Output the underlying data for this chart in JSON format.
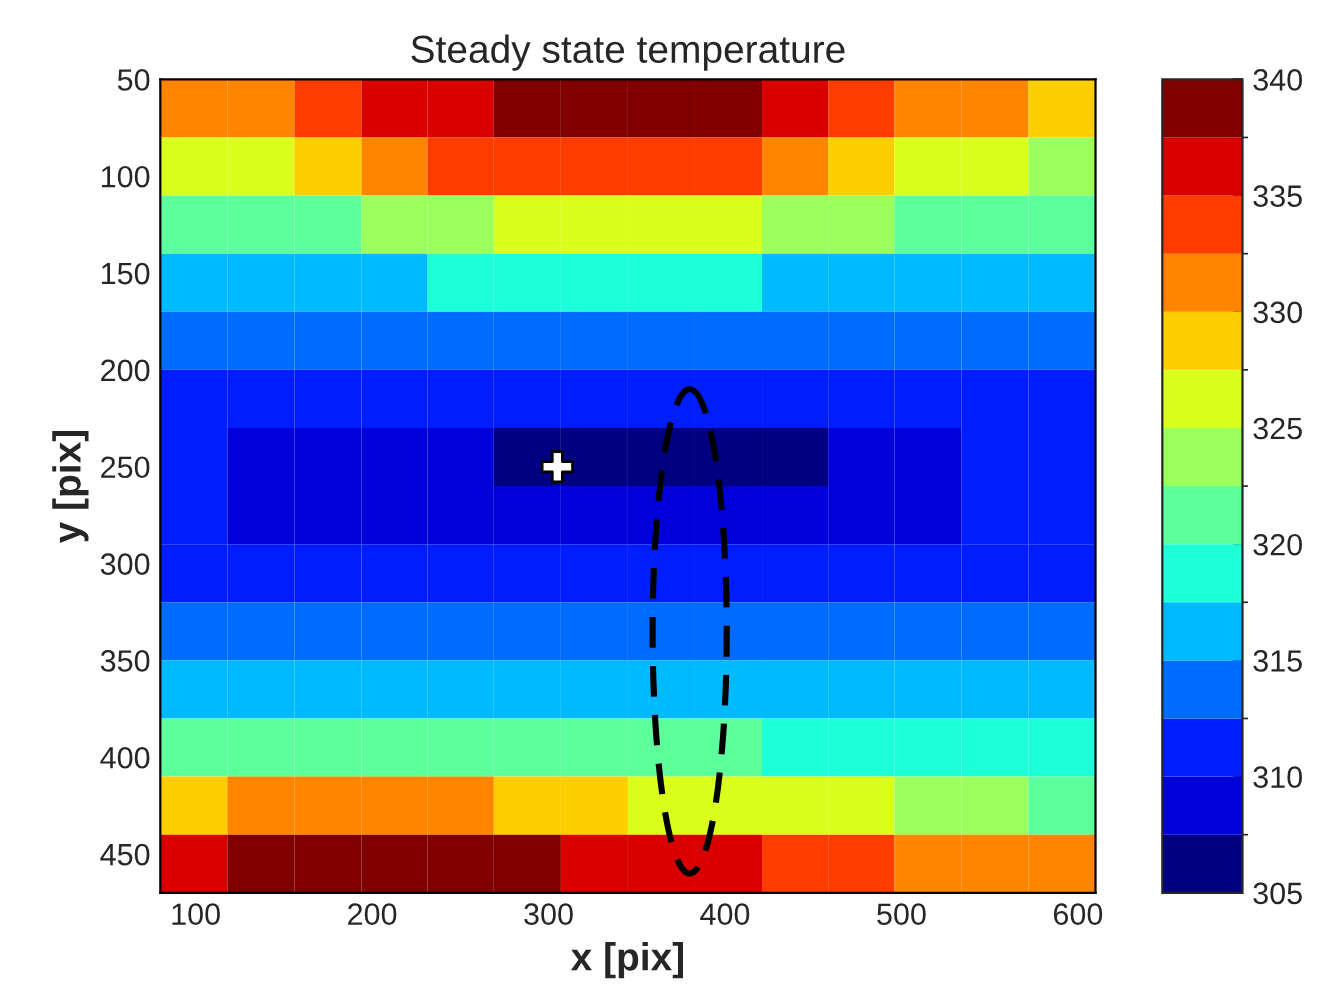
{
  "chart_data": {
    "type": "heatmap",
    "title": "Steady state temperature",
    "xlabel": "x [pix]",
    "ylabel": "y [pix]",
    "x": [
      99,
      137,
      175,
      213,
      250,
      288,
      326,
      364,
      402,
      440,
      477,
      515,
      553,
      591
    ],
    "y": [
      65,
      95,
      125,
      155,
      185,
      215,
      245,
      275,
      305,
      335,
      365,
      395,
      425,
      455
    ],
    "xlim": [
      80,
      610
    ],
    "ylim": [
      470,
      50
    ],
    "xticks": [
      100,
      200,
      300,
      400,
      500,
      600
    ],
    "yticks": [
      50,
      100,
      150,
      200,
      250,
      300,
      350,
      400,
      450
    ],
    "clim": [
      305,
      340
    ],
    "cticks": [
      305,
      310,
      315,
      320,
      325,
      330,
      335,
      340
    ],
    "cells": [
      [
        330,
        332,
        334,
        336,
        337,
        338,
        339,
        339,
        338,
        336,
        334,
        332,
        330,
        328
      ],
      [
        325,
        327,
        329,
        331,
        333,
        334,
        334,
        334,
        333,
        331,
        329,
        327,
        325,
        324
      ],
      [
        320,
        321,
        322,
        323,
        324,
        325,
        326,
        326,
        325,
        324,
        323,
        322,
        321,
        320
      ],
      [
        316,
        316,
        317,
        317,
        318,
        318,
        318,
        318,
        318,
        317,
        317,
        316,
        316,
        316
      ],
      [
        313,
        313,
        313,
        313,
        314,
        314,
        314,
        314,
        314,
        313,
        313,
        313,
        313,
        313
      ],
      [
        311,
        310,
        310,
        310,
        310,
        310,
        310,
        310,
        310,
        310,
        310,
        311,
        311,
        312
      ],
      [
        310,
        309,
        309,
        308,
        308,
        306,
        306,
        306,
        306,
        306,
        308,
        309,
        310,
        311
      ],
      [
        310,
        309,
        309,
        309,
        308,
        308,
        308,
        308,
        308,
        308,
        309,
        309,
        310,
        311
      ],
      [
        311,
        311,
        311,
        311,
        311,
        311,
        311,
        311,
        311,
        311,
        311,
        311,
        311,
        312
      ],
      [
        313,
        313,
        313,
        313,
        313,
        313,
        313,
        313,
        313,
        313,
        313,
        313,
        313,
        313
      ],
      [
        316,
        316,
        316,
        316,
        316,
        316,
        316,
        316,
        316,
        316,
        316,
        316,
        315,
        315
      ],
      [
        321,
        322,
        322,
        322,
        322,
        321,
        321,
        320,
        320,
        319,
        319,
        319,
        319,
        318
      ],
      [
        328,
        330,
        331,
        331,
        330,
        329,
        328,
        327,
        326,
        325,
        325,
        324,
        323,
        322
      ],
      [
        336,
        338,
        339,
        339,
        339,
        338,
        337,
        336,
        335,
        334,
        333,
        332,
        331,
        330
      ]
    ],
    "series": [
      {
        "type": "scatter",
        "x": [
          305
        ],
        "values": [
          250
        ],
        "color": "#ffffff"
      }
    ],
    "marker": "cross",
    "grid": false
  }
}
